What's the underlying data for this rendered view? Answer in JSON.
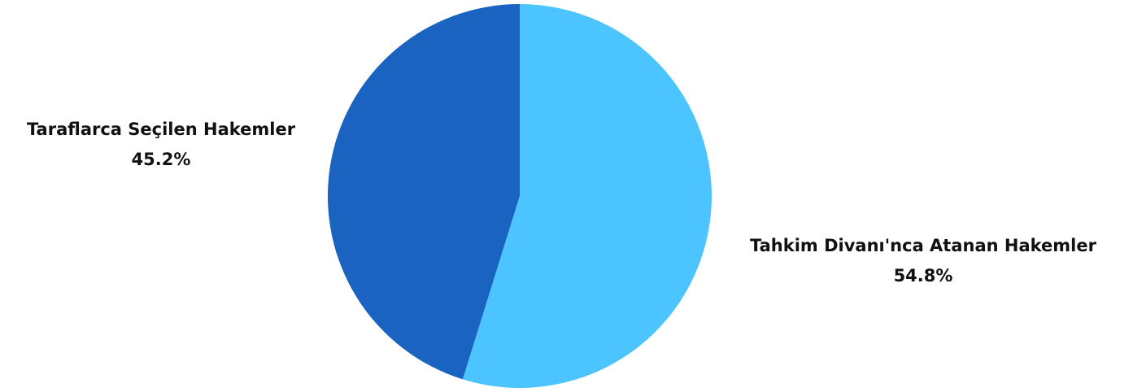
{
  "chart_data": {
    "type": "pie",
    "title": "",
    "slices": [
      {
        "label": "Tahkim Divanı'nca Atanan Hakemler",
        "value": 54.8,
        "percent_label": "54.8%",
        "color": "#4BC4FF"
      },
      {
        "label": "Taraflarca Seçilen Hakemler",
        "value": 45.2,
        "percent_label": "45.2%",
        "color": "#1A63C0"
      }
    ],
    "start_angle": "12 o'clock",
    "direction": "clockwise",
    "legend": "none"
  }
}
